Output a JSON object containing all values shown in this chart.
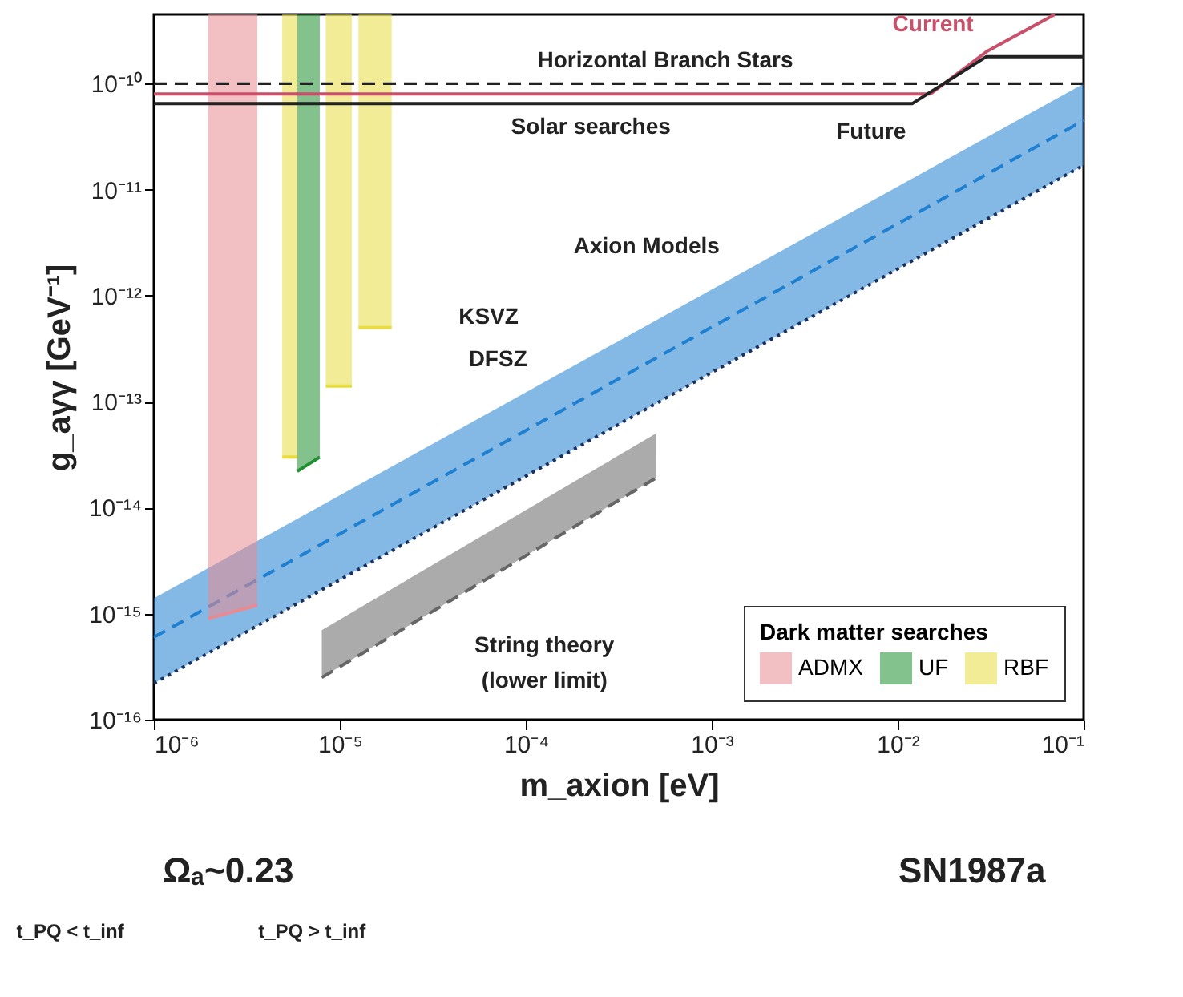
{
  "chart_data": {
    "type": "line",
    "xlabel": "m_axion [eV]",
    "ylabel": "g_aγγ [GeV⁻¹]",
    "legend_title": "Dark matter searches",
    "legend": "bottom right",
    "log": "xy",
    "xlim": [
      1e-06,
      0.1
    ],
    "ylim": [
      1e-16,
      4.5e-10
    ],
    "xticks": [
      {
        "value": 1e-06,
        "label": "10⁻⁶"
      },
      {
        "value": 1e-05,
        "label": "10⁻⁵"
      },
      {
        "value": 0.0001,
        "label": "10⁻⁴"
      },
      {
        "value": 0.001,
        "label": "10⁻³"
      },
      {
        "value": 0.01,
        "label": "10⁻²"
      },
      {
        "value": 0.1,
        "label": "10⁻¹"
      }
    ],
    "yticks": [
      {
        "value": 1e-16,
        "label": "10⁻¹⁶"
      },
      {
        "value": 1e-15,
        "label": "10⁻¹⁵"
      },
      {
        "value": 1e-14,
        "label": "10⁻¹⁴"
      },
      {
        "value": 1e-13,
        "label": "10⁻¹³"
      },
      {
        "value": 1e-12,
        "label": "10⁻¹²"
      },
      {
        "value": 1e-11,
        "label": "10⁻¹¹"
      },
      {
        "value": 1e-10,
        "label": "10⁻¹⁰"
      }
    ],
    "series": [
      {
        "x": [
          1e-06,
          0.1
        ],
        "values": [
          6e-16,
          4.5e-11
        ],
        "lower": [
          2.2e-16,
          1.7e-11
        ],
        "upper": [
          1.4e-15,
          1e-10
        ],
        "color": "#1f7fd0",
        "line_style": "dashed"
      },
      {
        "x": [
          1e-06,
          0.1
        ],
        "values": [
          2.2e-16,
          1.7e-11
        ],
        "color": "#1a3060",
        "line_style": "dotted"
      },
      {
        "x": [
          8e-06,
          0.0005
        ],
        "values": [
          2.5e-16,
          1.9e-14
        ],
        "lower": [
          2.5e-16,
          1.9e-14
        ],
        "upper": [
          7e-16,
          5e-14
        ],
        "color": "#666666",
        "line_style": "dashed"
      },
      {
        "name": "ADMX",
        "x": [
          1.96e-06,
          3.6e-06
        ],
        "values": [
          9e-16,
          1.2e-15
        ],
        "lower": [
          9e-16,
          1.2e-15
        ],
        "upper": [
          4.5e-10,
          4.5e-10
        ],
        "color": "#e88a92",
        "line_style": "solid"
      },
      {
        "name": "UF",
        "x": [
          5.9e-06,
          7.8e-06
        ],
        "values": [
          2.2e-14,
          3e-14
        ],
        "lower": [
          2.2e-14,
          3e-14
        ],
        "upper": [
          4.5e-10,
          4.5e-10
        ],
        "color": "#1f8f30",
        "line_style": "solid"
      },
      {
        "name": "RBF",
        "x": [
          4.9e-06,
          5.9e-06,
          7e-06,
          8.4e-06,
          1.16e-05,
          1.2e-05,
          1.26e-05,
          1.9e-05
        ],
        "values": [
          3e-14,
          3e-14,
          null,
          1.4e-13,
          1.4e-13,
          null,
          5e-13,
          5e-13
        ],
        "lower": [
          3e-14,
          3e-14,
          null,
          1.4e-13,
          1.4e-13,
          null,
          5e-13,
          5e-13
        ],
        "upper": [
          4.5e-10,
          4.5e-10,
          null,
          4.5e-10,
          4.5e-10,
          null,
          4.5e-10,
          4.5e-10
        ],
        "color": "#e8dc40",
        "line_style": "solid"
      },
      {
        "name": "Current",
        "x": [
          1e-06,
          0.015,
          0.03,
          0.07
        ],
        "values": [
          8e-11,
          8e-11,
          2e-10,
          4.5e-10
        ],
        "color": "#c8506a",
        "line_style": "solid"
      },
      {
        "name": "Future",
        "x": [
          1e-06,
          0.012,
          0.03,
          0.1
        ],
        "values": [
          6.5e-11,
          6.5e-11,
          1.8e-10,
          1.8e-10
        ],
        "color": "#222222",
        "line_style": "solid"
      }
    ],
    "ref_lines": [
      {
        "axis": "y",
        "value": 1e-10,
        "label": "Horizontal Branch Stars",
        "line_style": "dashed",
        "color": "#222222"
      }
    ],
    "annotations": [
      "Solar searches",
      "Axion Models",
      "KSVZ",
      "DFSZ",
      "String theory",
      "(lower limit)",
      "Ωₐ~0.23",
      "t_PQ < t_inf",
      "t_PQ > t_inf",
      "SN1987a"
    ]
  }
}
